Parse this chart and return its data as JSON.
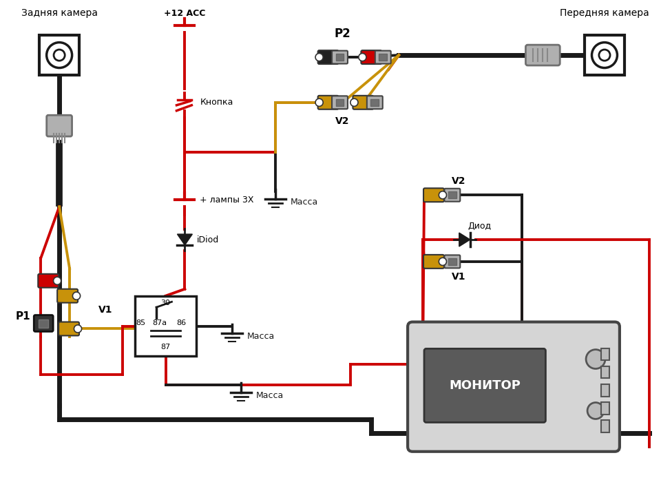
{
  "bg": "#ffffff",
  "red": "#cc0000",
  "black": "#1a1a1a",
  "yellow": "#c8920a",
  "gray_light": "#b0b0b0",
  "gray_dark": "#707070",
  "lw": 2.8,
  "lw_thick": 5.0,
  "labels": {
    "rear_cam": "Задняя камера",
    "front_cam": "Передняя камера",
    "plus12acc": "+12 ACC",
    "knopka": "Кнопка",
    "plus_lampy": "+ лампы 3Х",
    "idiod": "iDiod",
    "massa1": "Масса",
    "massa2": "Масса",
    "massa3": "Масса",
    "p1": "P1",
    "p2": "P2",
    "v1_left": "V1",
    "v2_top": "V2",
    "v2_right": "V2",
    "v1_right": "V1",
    "diod": "Диод",
    "monitor": "МОНИТОР",
    "r30": "30",
    "r85": "85",
    "r87a": "87a",
    "r86": "86",
    "r87": "87"
  }
}
